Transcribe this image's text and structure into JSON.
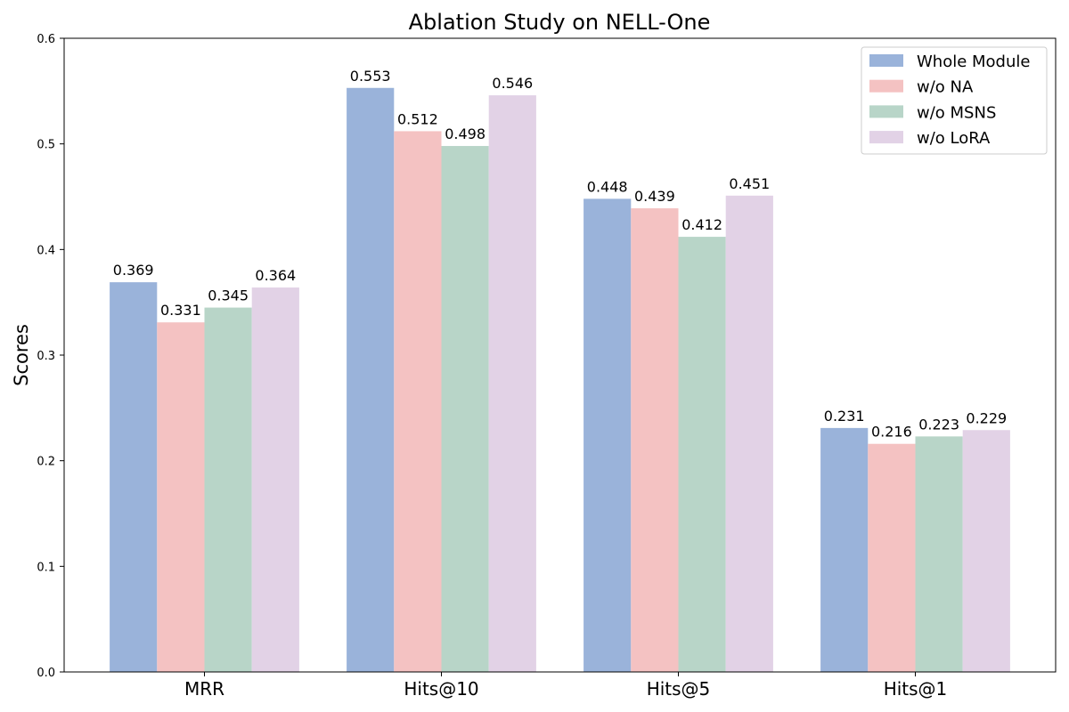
{
  "chart_data": {
    "type": "bar",
    "title": "Ablation Study on NELL-One",
    "xlabel": "",
    "ylabel": "Scores",
    "ylim": [
      0,
      0.6
    ],
    "yticks": [
      "0.0",
      "0.1",
      "0.2",
      "0.3",
      "0.4",
      "0.5",
      "0.6"
    ],
    "grid": false,
    "legend_position": "top-right",
    "categories": [
      "MRR",
      "Hits@10",
      "Hits@5",
      "Hits@1"
    ],
    "series": [
      {
        "name": "Whole Module",
        "color": "#9ab3da",
        "values": [
          0.369,
          0.553,
          0.448,
          0.231
        ],
        "labels": [
          "0.369",
          "0.553",
          "0.448",
          "0.231"
        ]
      },
      {
        "name": "w/o NA",
        "color": "#f4c2c2",
        "values": [
          0.331,
          0.512,
          0.439,
          0.216
        ],
        "labels": [
          "0.331",
          "0.512",
          "0.439",
          "0.216"
        ]
      },
      {
        "name": "w/o MSNS",
        "color": "#b8d5c8",
        "values": [
          0.345,
          0.498,
          0.412,
          0.223
        ],
        "labels": [
          "0.345",
          "0.498",
          "0.412",
          "0.223"
        ]
      },
      {
        "name": "w/o LoRA",
        "color": "#e2d2e6",
        "values": [
          0.364,
          0.546,
          0.451,
          0.229
        ],
        "labels": [
          "0.364",
          "0.546",
          "0.451",
          "0.229"
        ]
      }
    ]
  }
}
